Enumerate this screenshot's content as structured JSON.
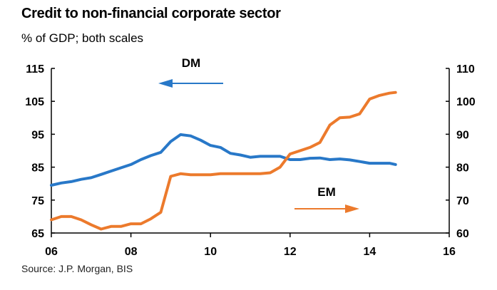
{
  "title": "Credit to non-financial corporate sector",
  "subtitle": "% of GDP; both scales",
  "source": "Source: J.P. Morgan, BIS",
  "chart_data": {
    "type": "line",
    "title": "Credit to non-financial corporate sector",
    "subtitle": "% of GDP; both scales",
    "x_ticks": [
      "06",
      "08",
      "10",
      "12",
      "14",
      "16"
    ],
    "x_tick_values": [
      2006,
      2008,
      2010,
      2012,
      2014,
      2016
    ],
    "xlim": [
      2006,
      2016
    ],
    "y_left": {
      "ylim": [
        65,
        115
      ],
      "ticks": [
        65,
        75,
        85,
        95,
        105,
        115
      ]
    },
    "y_right": {
      "ylim": [
        60,
        110
      ],
      "ticks": [
        60,
        70,
        80,
        90,
        100,
        110
      ]
    },
    "grid": false,
    "series": [
      {
        "name": "DM",
        "axis": "left",
        "color": "#2878c8",
        "x": [
          2006.0,
          2006.25,
          2006.5,
          2006.75,
          2007.0,
          2007.25,
          2007.5,
          2007.75,
          2008.0,
          2008.25,
          2008.5,
          2008.75,
          2009.0,
          2009.25,
          2009.5,
          2009.75,
          2010.0,
          2010.25,
          2010.5,
          2010.75,
          2011.0,
          2011.25,
          2011.5,
          2011.75,
          2012.0,
          2012.25,
          2012.5,
          2012.75,
          2013.0,
          2013.25,
          2013.5,
          2013.75,
          2014.0,
          2014.25,
          2014.5,
          2014.65
        ],
        "values": [
          79.5,
          80.2,
          80.6,
          81.3,
          81.8,
          82.8,
          83.8,
          84.8,
          85.8,
          87.3,
          88.5,
          89.5,
          92.8,
          94.9,
          94.5,
          93.2,
          91.6,
          91.0,
          89.2,
          88.7,
          88.0,
          88.3,
          88.3,
          88.3,
          87.3,
          87.3,
          87.7,
          87.8,
          87.3,
          87.5,
          87.2,
          86.7,
          86.2,
          86.2,
          86.2,
          85.8
        ]
      },
      {
        "name": "EM",
        "axis": "right",
        "color": "#ec7a2c",
        "x": [
          2006.0,
          2006.25,
          2006.5,
          2006.75,
          2007.0,
          2007.25,
          2007.5,
          2007.75,
          2008.0,
          2008.25,
          2008.5,
          2008.75,
          2009.0,
          2009.25,
          2009.5,
          2009.75,
          2010.0,
          2010.25,
          2010.5,
          2010.75,
          2011.0,
          2011.25,
          2011.5,
          2011.75,
          2012.0,
          2012.25,
          2012.5,
          2012.75,
          2013.0,
          2013.25,
          2013.5,
          2013.75,
          2014.0,
          2014.25,
          2014.5,
          2014.65
        ],
        "values": [
          64.0,
          65.0,
          65.0,
          64.0,
          62.5,
          61.2,
          62.0,
          62.0,
          62.8,
          62.8,
          64.3,
          66.3,
          77.2,
          78.0,
          77.7,
          77.7,
          77.7,
          78.0,
          78.0,
          78.0,
          78.0,
          78.0,
          78.3,
          80.0,
          84.0,
          85.0,
          86.0,
          87.5,
          92.8,
          95.0,
          95.2,
          96.2,
          100.7,
          101.8,
          102.5,
          102.7
        ]
      }
    ],
    "annotations": [
      {
        "text": "DM",
        "arrow": "left"
      },
      {
        "text": "EM",
        "arrow": "right"
      }
    ]
  }
}
